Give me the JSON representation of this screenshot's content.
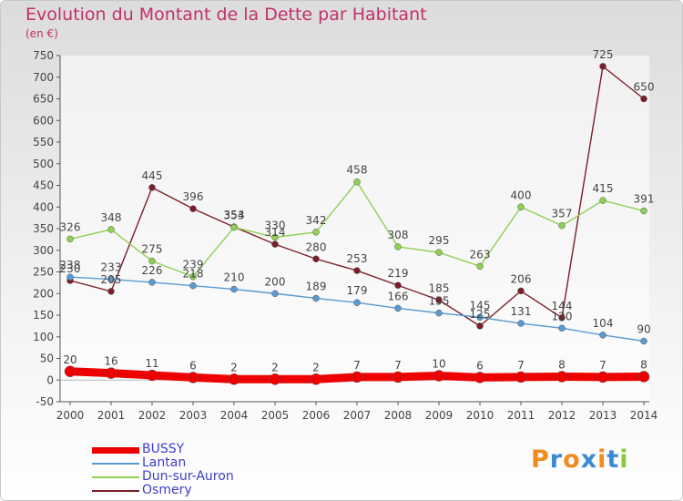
{
  "chart_data": {
    "type": "line",
    "title": "Evolution du Montant de la Dette par Habitant",
    "subtitle": "(en €)",
    "categories": [
      "2000",
      "2001",
      "2002",
      "2003",
      "2004",
      "2005",
      "2006",
      "2007",
      "2008",
      "2009",
      "2010",
      "2011",
      "2012",
      "2013",
      "2014"
    ],
    "ylim": [
      -50,
      750
    ],
    "yticks": [
      -50,
      0,
      50,
      100,
      150,
      200,
      250,
      300,
      350,
      400,
      450,
      500,
      550,
      600,
      650,
      700,
      750
    ],
    "grid": false,
    "legend_position": "bottom-left",
    "series": [
      {
        "name": "Osmery",
        "color": "#7a1e28",
        "values": [
          230,
          205,
          445,
          396,
          354,
          314,
          280,
          253,
          219,
          185,
          125,
          206,
          144,
          725,
          650
        ]
      },
      {
        "name": "Dun-sur-Auron",
        "color": "#8dd052",
        "values": [
          326,
          348,
          275,
          239,
          353,
          330,
          342,
          458,
          308,
          295,
          263,
          400,
          357,
          415,
          391
        ]
      },
      {
        "name": "Lantan",
        "color": "#5a9ad2",
        "values": [
          238,
          233,
          226,
          218,
          210,
          200,
          189,
          179,
          166,
          155,
          145,
          131,
          120,
          104,
          90
        ]
      },
      {
        "name": "BUSSY",
        "color": "#ee0000",
        "values": [
          20,
          16,
          11,
          6,
          2,
          2,
          2,
          7,
          7,
          10,
          6,
          7,
          8,
          7,
          8
        ]
      }
    ],
    "data_labels": {
      "Osmery": [
        "230",
        "205",
        "445",
        "396",
        "354",
        "314",
        "280",
        "253",
        "219",
        "185",
        "125",
        "206",
        "144",
        "725",
        "650"
      ],
      "Dun-sur-Auron": [
        "326",
        "348",
        "275",
        "239",
        "353",
        "330",
        "342",
        "458",
        "308",
        "295",
        "263",
        "400",
        "357",
        "415",
        "391"
      ],
      "Lantan": [
        "238",
        "233",
        "226",
        "218",
        "210",
        "200",
        "189",
        "179",
        "166",
        "155",
        "145",
        "131",
        "120",
        "104",
        "90"
      ],
      "BUSSY": [
        "20",
        "16",
        "11",
        "6",
        "2",
        "2",
        "2",
        "7",
        "7",
        "10",
        "6",
        "7",
        "8",
        "7",
        "8"
      ]
    }
  },
  "legend": [
    {
      "label": "BUSSY",
      "color": "#ee0000",
      "thick": true
    },
    {
      "label": "Lantan",
      "color": "#5a9ad2",
      "thick": false
    },
    {
      "label": "Dun-sur-Auron",
      "color": "#8dd052",
      "thick": false
    },
    {
      "label": "Osmery",
      "color": "#7a1e28",
      "thick": false
    }
  ],
  "brand": {
    "letters": [
      "P",
      "r",
      "o",
      "x",
      "i",
      "t",
      "i"
    ],
    "colors": [
      "#f08c1e",
      "#3b8ad8",
      "#f08c1e",
      "#3b8ad8",
      "#f08c1e",
      "#3b8ad8",
      "#8dc63f"
    ]
  }
}
